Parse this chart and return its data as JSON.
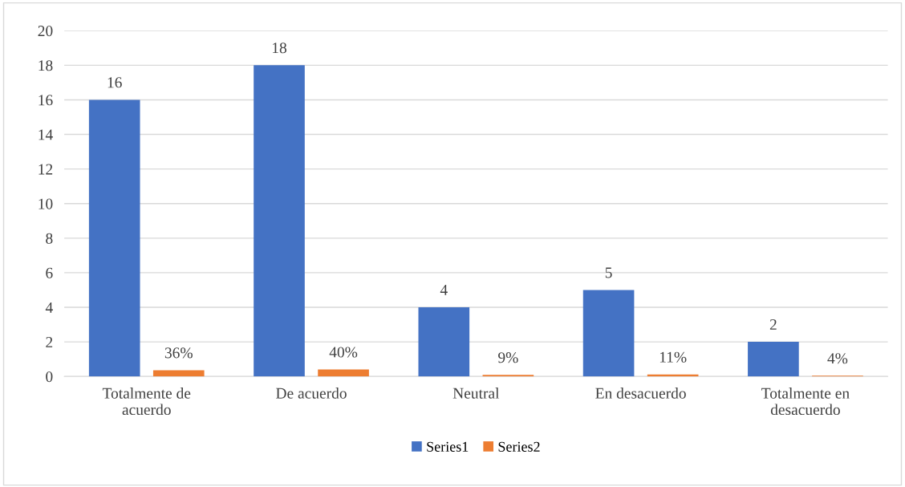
{
  "chart_data": {
    "type": "bar",
    "categories": [
      "Totalmente de\nacuerdo",
      "De acuerdo",
      "Neutral",
      "En desacuerdo",
      "Totalmente en\ndesacuerdo"
    ],
    "series": [
      {
        "name": "Series1",
        "color": "#4472c4",
        "values": [
          16,
          18,
          4,
          5,
          2
        ],
        "value_labels": [
          "16",
          "18",
          "4",
          "5",
          "2"
        ]
      },
      {
        "name": "Series2",
        "color": "#ed7d31",
        "values": [
          0.36,
          0.4,
          0.09,
          0.11,
          0.04
        ],
        "value_labels": [
          "36%",
          "40%",
          "9%",
          "11%",
          "4%"
        ]
      }
    ],
    "ylim": [
      0,
      20
    ],
    "yticks": [
      0,
      2,
      4,
      6,
      8,
      10,
      12,
      14,
      16,
      18,
      20
    ],
    "grid": "y",
    "legend": "bottom"
  }
}
